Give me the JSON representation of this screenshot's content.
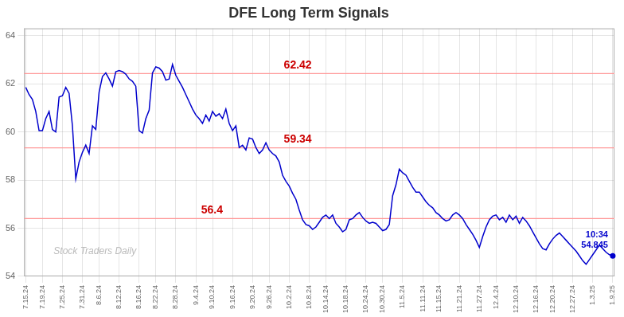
{
  "chart_data": {
    "type": "line",
    "title": "DFE Long Term Signals",
    "color": "#0000cc",
    "grid": true,
    "ylim": [
      54.0,
      64.3
    ],
    "yticks": [
      54,
      56,
      58,
      60,
      62,
      64
    ],
    "categories": [
      "7.15.24",
      null,
      null,
      null,
      null,
      "7.19.24",
      null,
      null,
      null,
      null,
      null,
      "7.25.24",
      null,
      null,
      null,
      null,
      null,
      "7.31.24",
      null,
      null,
      null,
      null,
      "8.6.24",
      null,
      null,
      null,
      null,
      null,
      "8.12.24",
      null,
      null,
      null,
      null,
      null,
      "8.16.24",
      null,
      null,
      null,
      null,
      "8.22.24",
      null,
      null,
      null,
      null,
      null,
      "8.28.24",
      null,
      null,
      null,
      null,
      null,
      "9.4.24",
      null,
      null,
      null,
      null,
      "9.10.24",
      null,
      null,
      null,
      null,
      null,
      "9.16.24",
      null,
      null,
      null,
      null,
      null,
      "9.20.24",
      null,
      null,
      null,
      null,
      "9.26.24",
      null,
      null,
      null,
      null,
      null,
      "10.2.24",
      null,
      null,
      null,
      null,
      null,
      "10.8.24",
      null,
      null,
      null,
      null,
      "10.14.24",
      null,
      null,
      null,
      null,
      null,
      "10.18.24",
      null,
      null,
      null,
      null,
      null,
      "10.24.24",
      null,
      null,
      null,
      null,
      "10.30.24",
      null,
      null,
      null,
      null,
      null,
      "11.5.24",
      null,
      null,
      null,
      null,
      null,
      "11.11.24",
      null,
      null,
      null,
      null,
      "11.15.24",
      null,
      null,
      null,
      null,
      null,
      "11.21.24",
      null,
      null,
      null,
      null,
      null,
      "11.27.24",
      null,
      null,
      null,
      null,
      "12.4.24",
      null,
      null,
      null,
      null,
      null,
      "12.10.24",
      null,
      null,
      null,
      null,
      null,
      "12.16.24",
      null,
      null,
      null,
      null,
      "12.20.24",
      null,
      null,
      null,
      null,
      null,
      "12.27.24",
      null,
      null,
      null,
      null,
      null,
      "1.3.25",
      null,
      null,
      null,
      null,
      null,
      "1.9.25"
    ],
    "values": [
      61.85,
      61.55,
      61.35,
      60.85,
      60.05,
      60.05,
      60.55,
      60.85,
      60.1,
      60.0,
      61.45,
      61.5,
      61.85,
      61.6,
      60.25,
      58.05,
      58.75,
      59.15,
      59.45,
      59.1,
      60.25,
      60.1,
      61.65,
      62.3,
      62.45,
      62.2,
      61.9,
      62.5,
      62.55,
      62.5,
      62.4,
      62.2,
      62.1,
      61.9,
      60.05,
      59.95,
      60.55,
      60.9,
      62.45,
      62.7,
      62.65,
      62.5,
      62.15,
      62.2,
      62.8,
      62.35,
      62.1,
      61.85,
      61.55,
      61.25,
      60.95,
      60.7,
      60.55,
      60.35,
      60.7,
      60.45,
      60.85,
      60.65,
      60.75,
      60.55,
      60.95,
      60.35,
      60.05,
      60.25,
      59.35,
      59.45,
      59.25,
      59.75,
      59.7,
      59.35,
      59.1,
      59.25,
      59.55,
      59.25,
      59.1,
      59.0,
      58.75,
      58.2,
      57.95,
      57.75,
      57.45,
      57.2,
      56.75,
      56.35,
      56.15,
      56.1,
      55.95,
      56.05,
      56.25,
      56.45,
      56.55,
      56.4,
      56.55,
      56.2,
      56.05,
      55.85,
      55.95,
      56.35,
      56.4,
      56.55,
      56.65,
      56.45,
      56.3,
      56.2,
      56.25,
      56.2,
      56.05,
      55.9,
      55.95,
      56.15,
      57.35,
      57.8,
      58.45,
      58.3,
      58.2,
      57.95,
      57.7,
      57.5,
      57.5,
      57.3,
      57.1,
      56.95,
      56.85,
      56.65,
      56.55,
      56.4,
      56.3,
      56.35,
      56.55,
      56.65,
      56.55,
      56.4,
      56.15,
      55.95,
      55.75,
      55.5,
      55.2,
      55.65,
      56.05,
      56.35,
      56.5,
      56.55,
      56.35,
      56.45,
      56.25,
      56.55,
      56.35,
      56.5,
      56.2,
      56.45,
      56.3,
      56.1,
      55.85,
      55.6,
      55.35,
      55.15,
      55.1,
      55.35,
      55.55,
      55.7,
      55.8,
      55.65,
      55.5,
      55.35,
      55.2,
      55.05,
      54.85,
      54.65,
      54.5,
      54.7,
      54.9,
      55.1,
      55.3,
      55.15,
      55.0,
      54.9,
      54.85
    ],
    "hlines": [
      {
        "y": 62.42,
        "label": "62.42",
        "color": "#ff9999",
        "label_color": "#cc0000"
      },
      {
        "y": 59.34,
        "label": "59.34",
        "color": "#ff9999",
        "label_color": "#cc0000"
      },
      {
        "y": 56.4,
        "label": "56.4",
        "color": "#ff9999",
        "label_color": "#cc0000"
      }
    ],
    "annotations": [
      {
        "text": "10:34",
        "color": "#0000cc"
      },
      {
        "text": "54.845",
        "color": "#0000cc"
      },
      {
        "text": "Stock Traders Daily",
        "color": "#bbbbbb"
      }
    ]
  }
}
